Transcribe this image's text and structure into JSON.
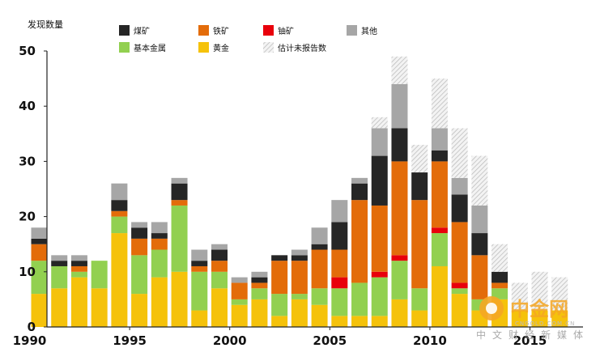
{
  "chart_data": {
    "type": "bar",
    "stacked": true,
    "title": "",
    "ylabel": "发现数量",
    "xlabel": "",
    "ylim": [
      0,
      50
    ],
    "yticks": [
      0,
      10,
      20,
      30,
      40,
      50
    ],
    "xtick_labels": [
      "1990",
      "1995",
      "2000",
      "2005",
      "2010",
      "2015"
    ],
    "grid": false,
    "legend_position": "top",
    "categories": [
      "1990",
      "1991",
      "1992",
      "1993",
      "1994",
      "1995",
      "1996",
      "1997",
      "1998",
      "1999",
      "2000",
      "2001",
      "2002",
      "2003",
      "2004",
      "2005",
      "2006",
      "2007",
      "2008",
      "2009",
      "2010",
      "2011",
      "2012",
      "2013",
      "2014",
      "2015",
      "2016"
    ],
    "series": [
      {
        "name": "黄金",
        "color": "#f5c20b",
        "values": [
          6,
          7,
          9,
          7,
          17,
          6,
          9,
          10,
          3,
          7,
          4,
          5,
          2,
          5,
          4,
          2,
          2,
          2,
          5,
          3,
          11,
          6,
          3,
          5,
          3,
          3,
          3
        ]
      },
      {
        "name": "基本金属",
        "color": "#92d050",
        "values": [
          6,
          4,
          1,
          5,
          3,
          7,
          5,
          12,
          7,
          3,
          1,
          2,
          4,
          1,
          3,
          5,
          6,
          7,
          7,
          4,
          6,
          1,
          2,
          2,
          0,
          0,
          0
        ]
      },
      {
        "name": "铀矿",
        "color": "#e8000b",
        "values": [
          0,
          0,
          0,
          0,
          0,
          0,
          0,
          0,
          0,
          0,
          0,
          0,
          0,
          0,
          0,
          2,
          0,
          1,
          1,
          0,
          1,
          1,
          0,
          0,
          0,
          0,
          0
        ]
      },
      {
        "name": "铁矿",
        "color": "#e36c0a",
        "values": [
          3,
          0,
          1,
          0,
          1,
          3,
          2,
          1,
          1,
          2,
          3,
          1,
          6,
          6,
          7,
          5,
          15,
          12,
          17,
          16,
          12,
          11,
          8,
          1,
          0,
          0,
          0
        ]
      },
      {
        "name": "煤矿",
        "color": "#262626",
        "values": [
          1,
          1,
          1,
          0,
          2,
          2,
          1,
          3,
          1,
          2,
          0,
          1,
          1,
          1,
          1,
          5,
          3,
          9,
          6,
          5,
          2,
          5,
          4,
          2,
          0,
          0,
          0
        ]
      },
      {
        "name": "其他",
        "color": "#a6a6a6",
        "values": [
          2,
          1,
          1,
          0,
          3,
          1,
          2,
          1,
          2,
          1,
          1,
          1,
          0,
          1,
          3,
          4,
          1,
          5,
          8,
          0,
          4,
          3,
          5,
          0,
          0,
          0,
          0
        ]
      },
      {
        "name": "估计未报告数",
        "color": "#d9d9d9",
        "hatched": true,
        "values": [
          0,
          0,
          0,
          0,
          0,
          0,
          0,
          0,
          0,
          0,
          0,
          0,
          0,
          0,
          0,
          0,
          0,
          2,
          5,
          5,
          9,
          9,
          9,
          5,
          5,
          7,
          6
        ]
      }
    ]
  },
  "watermark": {
    "brand": "中金网",
    "domain": "CNGOLD.COM.CN",
    "slogan": "中文财经新媒体"
  }
}
